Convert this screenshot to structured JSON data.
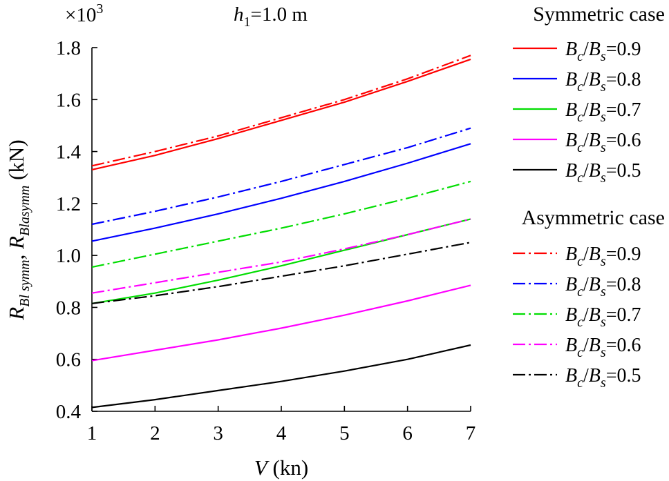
{
  "chart_data": {
    "type": "line",
    "title": {
      "var": "h",
      "sub": "1",
      "rest": "=1.0 m"
    },
    "multiplier": {
      "prefix": "×10",
      "exp": "3"
    },
    "xlabel": {
      "var": "V",
      "rest": " (kn)"
    },
    "ylabel": {
      "var": "R",
      "sub1": "Bl symm",
      "sep": ", ",
      "sub2": "Blasymm",
      "rest": " (kN)"
    },
    "xlim": [
      1,
      7
    ],
    "ylim": [
      0.4,
      1.8
    ],
    "xticks": [
      "1",
      "2",
      "3",
      "4",
      "5",
      "6",
      "7"
    ],
    "yticks": [
      "0.4",
      "0.6",
      "0.8",
      "1.0",
      "1.2",
      "1.4",
      "1.6",
      "1.8"
    ],
    "x": [
      1,
      2,
      3,
      4,
      5,
      6,
      7
    ],
    "legend_groups": [
      {
        "heading": "Symmetric case",
        "style": "solid"
      },
      {
        "heading": "Asymmetric case",
        "style": "dashdot"
      }
    ],
    "series": [
      {
        "name": "Bc/Bs=0.9",
        "ratio": "0.9",
        "case": "symmetric",
        "style": "solid",
        "color": "#ff0000",
        "values": [
          1.33,
          1.385,
          1.45,
          1.52,
          1.59,
          1.67,
          1.755
        ]
      },
      {
        "name": "Bc/Bs=0.8",
        "ratio": "0.8",
        "case": "symmetric",
        "style": "solid",
        "color": "#0000ff",
        "values": [
          1.055,
          1.105,
          1.16,
          1.22,
          1.285,
          1.355,
          1.43
        ]
      },
      {
        "name": "Bc/Bs=0.7",
        "ratio": "0.7",
        "case": "symmetric",
        "style": "solid",
        "color": "#00dd00",
        "values": [
          0.815,
          0.855,
          0.905,
          0.96,
          1.02,
          1.08,
          1.14
        ]
      },
      {
        "name": "Bc/Bs=0.6",
        "ratio": "0.6",
        "case": "symmetric",
        "style": "solid",
        "color": "#ff00ff",
        "values": [
          0.595,
          0.635,
          0.675,
          0.72,
          0.77,
          0.825,
          0.885
        ]
      },
      {
        "name": "Bc/Bs=0.5",
        "ratio": "0.5",
        "case": "symmetric",
        "style": "solid",
        "color": "#000000",
        "values": [
          0.415,
          0.445,
          0.48,
          0.515,
          0.555,
          0.6,
          0.655
        ]
      },
      {
        "name": "Bc/Bs=0.9",
        "ratio": "0.9",
        "case": "asymmetric",
        "style": "dashdot",
        "color": "#ff0000",
        "values": [
          1.345,
          1.4,
          1.46,
          1.53,
          1.6,
          1.68,
          1.77
        ]
      },
      {
        "name": "Bc/Bs=0.8",
        "ratio": "0.8",
        "case": "asymmetric",
        "style": "dashdot",
        "color": "#0000ff",
        "values": [
          1.12,
          1.17,
          1.225,
          1.285,
          1.35,
          1.415,
          1.49
        ]
      },
      {
        "name": "Bc/Bs=0.7",
        "ratio": "0.7",
        "case": "asymmetric",
        "style": "dashdot",
        "color": "#00dd00",
        "values": [
          0.955,
          1.005,
          1.055,
          1.105,
          1.16,
          1.22,
          1.285
        ]
      },
      {
        "name": "Bc/Bs=0.6",
        "ratio": "0.6",
        "case": "asymmetric",
        "style": "dashdot",
        "color": "#ff00ff",
        "values": [
          0.855,
          0.895,
          0.935,
          0.975,
          1.025,
          1.08,
          1.14
        ]
      },
      {
        "name": "Bc/Bs=0.5",
        "ratio": "0.5",
        "case": "asymmetric",
        "style": "dashdot",
        "color": "#000000",
        "values": [
          0.815,
          0.845,
          0.88,
          0.92,
          0.96,
          1.005,
          1.05
        ]
      }
    ],
    "grid": false,
    "legend_position": "right"
  }
}
